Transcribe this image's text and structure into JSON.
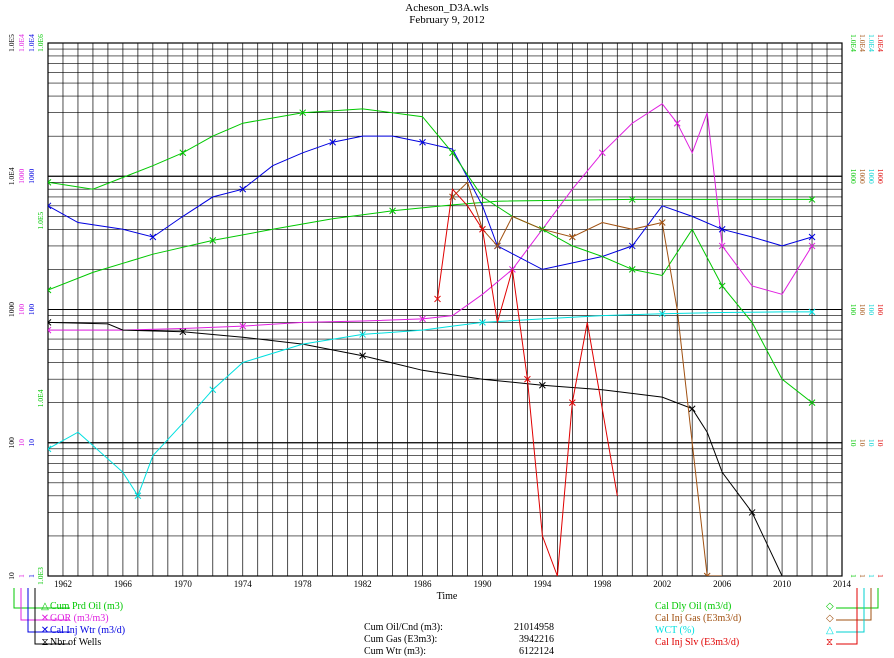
{
  "header": {
    "file": "Acheson_D3A.wls",
    "date": "February 9, 2012"
  },
  "axis": {
    "x_label": "Time",
    "x_ticks": [
      "1962",
      "1966",
      "1970",
      "1974",
      "1978",
      "1982",
      "1986",
      "1990",
      "1994",
      "1998",
      "2002",
      "2006",
      "2010",
      "2014"
    ],
    "left_scale_1": [
      "10",
      "100",
      "1000",
      "1.0E4",
      "1.0E5"
    ],
    "left_scale_2": [
      "1",
      "10",
      "100",
      "1000",
      "1.0E4"
    ],
    "left_scale_3": [
      "1",
      "10",
      "100",
      "1000",
      "1.0E4"
    ],
    "left_scale_4": [
      "1.0E3",
      "1.0E4",
      "1.0E5",
      "1.0E6"
    ],
    "right_scale_1": [
      "1",
      "10",
      "100",
      "1000",
      "1.0E4"
    ],
    "right_scale_2": [
      "1",
      "10",
      "100",
      "1000",
      "1.0E4"
    ],
    "right_scale_3": [
      "1",
      "10",
      "100",
      "1000",
      "1.0E4"
    ],
    "right_scale_4": [
      "1",
      "10",
      "100",
      "1000",
      "1.0E4"
    ]
  },
  "legend": {
    "left": [
      {
        "label": "Cum Prd Oil (m3)",
        "color": "#00c800",
        "symbol": "△"
      },
      {
        "label": "GOR (m3/m3)",
        "color": "#e020e0",
        "symbol": "✕"
      },
      {
        "label": "Cal Inj Wtr (m3/d)",
        "color": "#0000e0",
        "symbol": "✕"
      },
      {
        "label": "Nbr of Wells",
        "color": "#000000",
        "symbol": "⧖"
      }
    ],
    "right": [
      {
        "label": "Cal Dly Oil (m3/d)",
        "color": "#00c800",
        "symbol": "◇"
      },
      {
        "label": "Cal Inj Gas (E3m3/d)",
        "color": "#a05010",
        "symbol": "◇"
      },
      {
        "label": "WCT (%)",
        "color": "#00e0e0",
        "symbol": "△"
      },
      {
        "label": "Cal Inj Slv (E3m3/d)",
        "color": "#e00000",
        "symbol": "⧖"
      }
    ]
  },
  "cumulatives": [
    {
      "label": "Cum Oil/Cnd (m3):",
      "value": "21014958"
    },
    {
      "label": "Cum Gas (E3m3):",
      "value": "3942216"
    },
    {
      "label": "Cum Wtr (m3):",
      "value": "6122124"
    }
  ],
  "chart_data": {
    "type": "line",
    "title": "Acheson_D3A.wls",
    "subtitle": "February 9, 2012",
    "xlabel": "Time",
    "xlim": [
      1961,
      2014
    ],
    "y_scale": "log",
    "grid": true,
    "series": [
      {
        "name": "Cum Prd Oil (m3)",
        "color": "#00c800",
        "axis": "1.0E3-1.0E6",
        "x": [
          1961,
          1964,
          1968,
          1972,
          1976,
          1980,
          1984,
          1988,
          1991,
          2000,
          2004,
          2010,
          2012
        ],
        "y": [
          140000.0,
          190000.0,
          260000.0,
          330000.0,
          400000.0,
          480000.0,
          550000.0,
          610000.0,
          650000.0,
          670000.0,
          670000.0,
          670000.0,
          670000.0
        ]
      },
      {
        "name": "GOR (m3/m3)",
        "color": "#e020e0",
        "axis": "1-1.0E4",
        "x": [
          1961,
          1966,
          1970,
          1974,
          1978,
          1982,
          1986,
          1988,
          1990,
          1992,
          1994,
          1996,
          1998,
          2000,
          2002,
          2003,
          2004,
          2005,
          2006,
          2008,
          2010,
          2012
        ],
        "y": [
          70,
          70,
          72,
          75,
          80,
          82,
          85,
          90,
          130,
          200,
          400,
          800,
          1500,
          2500,
          3500,
          2500,
          1500,
          3000,
          300,
          150,
          130,
          300
        ]
      },
      {
        "name": "Cal Inj Wtr (m3/d)",
        "color": "#0000e0",
        "axis": "10-1.0E5",
        "x": [
          1961,
          1963,
          1966,
          1968,
          1970,
          1972,
          1974,
          1976,
          1978,
          1980,
          1982,
          1984,
          1986,
          1988,
          1990,
          1991,
          1994,
          1998,
          2000,
          2002,
          2004,
          2006,
          2008,
          2010,
          2012
        ],
        "y": [
          6000,
          4500,
          4000,
          3500,
          5000,
          7000,
          8000,
          12000,
          15000,
          18000,
          20000,
          20000,
          18000,
          16000,
          6000,
          3000,
          2000,
          2500,
          3000,
          6000,
          5000,
          4000,
          3500,
          3000,
          3500
        ]
      },
      {
        "name": "Nbr of Wells",
        "color": "#000000",
        "axis": "1-1.0E4",
        "x": [
          1961,
          1965,
          1966,
          1970,
          1974,
          1978,
          1982,
          1986,
          1990,
          1994,
          1998,
          2002,
          2004,
          2005,
          2006,
          2008,
          2010,
          2011
        ],
        "y": [
          80,
          78,
          70,
          68,
          62,
          55,
          45,
          35,
          30,
          27,
          25,
          22,
          18,
          12,
          6,
          3,
          1,
          1
        ]
      },
      {
        "name": "Cal Dly Oil (m3/d)",
        "color": "#00c800",
        "axis": "1-1.0E4",
        "x": [
          1961,
          1964,
          1968,
          1970,
          1972,
          1974,
          1978,
          1982,
          1986,
          1988,
          1990,
          1992,
          1994,
          1996,
          1998,
          2000,
          2002,
          2004,
          2006,
          2008,
          2010,
          2012
        ],
        "y": [
          900,
          800,
          1200,
          1500,
          2000,
          2500,
          3000,
          3200,
          2800,
          1500,
          700,
          500,
          400,
          300,
          250,
          200,
          180,
          400,
          150,
          80,
          30,
          20
        ]
      },
      {
        "name": "Cal Inj Gas (E3m3/d)",
        "color": "#a05010",
        "axis": "1-1.0E4",
        "x": [
          1988,
          1989,
          1990,
          1991,
          1992,
          1994,
          1996,
          1998,
          2000,
          2002,
          2003,
          2004,
          2005,
          2006
        ],
        "y": [
          700,
          900,
          400,
          300,
          500,
          400,
          350,
          450,
          400,
          450,
          100,
          10,
          1,
          1
        ]
      },
      {
        "name": "WCT (%)",
        "color": "#00e0e0",
        "axis": "1-100",
        "x": [
          1961,
          1963,
          1966,
          1967,
          1968,
          1970,
          1972,
          1974,
          1978,
          1982,
          1986,
          1988,
          1990,
          1994,
          1998,
          2002,
          2006,
          2010,
          2012
        ],
        "y": [
          9,
          12,
          6,
          4,
          8,
          14,
          25,
          40,
          55,
          65,
          70,
          75,
          80,
          85,
          90,
          93,
          95,
          96,
          96
        ]
      },
      {
        "name": "Cal Inj Slv (E3m3/d)",
        "color": "#e00000",
        "axis": "1-1.0E4",
        "x": [
          1987,
          1988,
          1989,
          1990,
          1991,
          1992,
          1993,
          1994,
          1995,
          1996,
          1997,
          1999
        ],
        "y": [
          120,
          800,
          600,
          400,
          80,
          200,
          30,
          2,
          1,
          20,
          80,
          4
        ]
      }
    ]
  }
}
